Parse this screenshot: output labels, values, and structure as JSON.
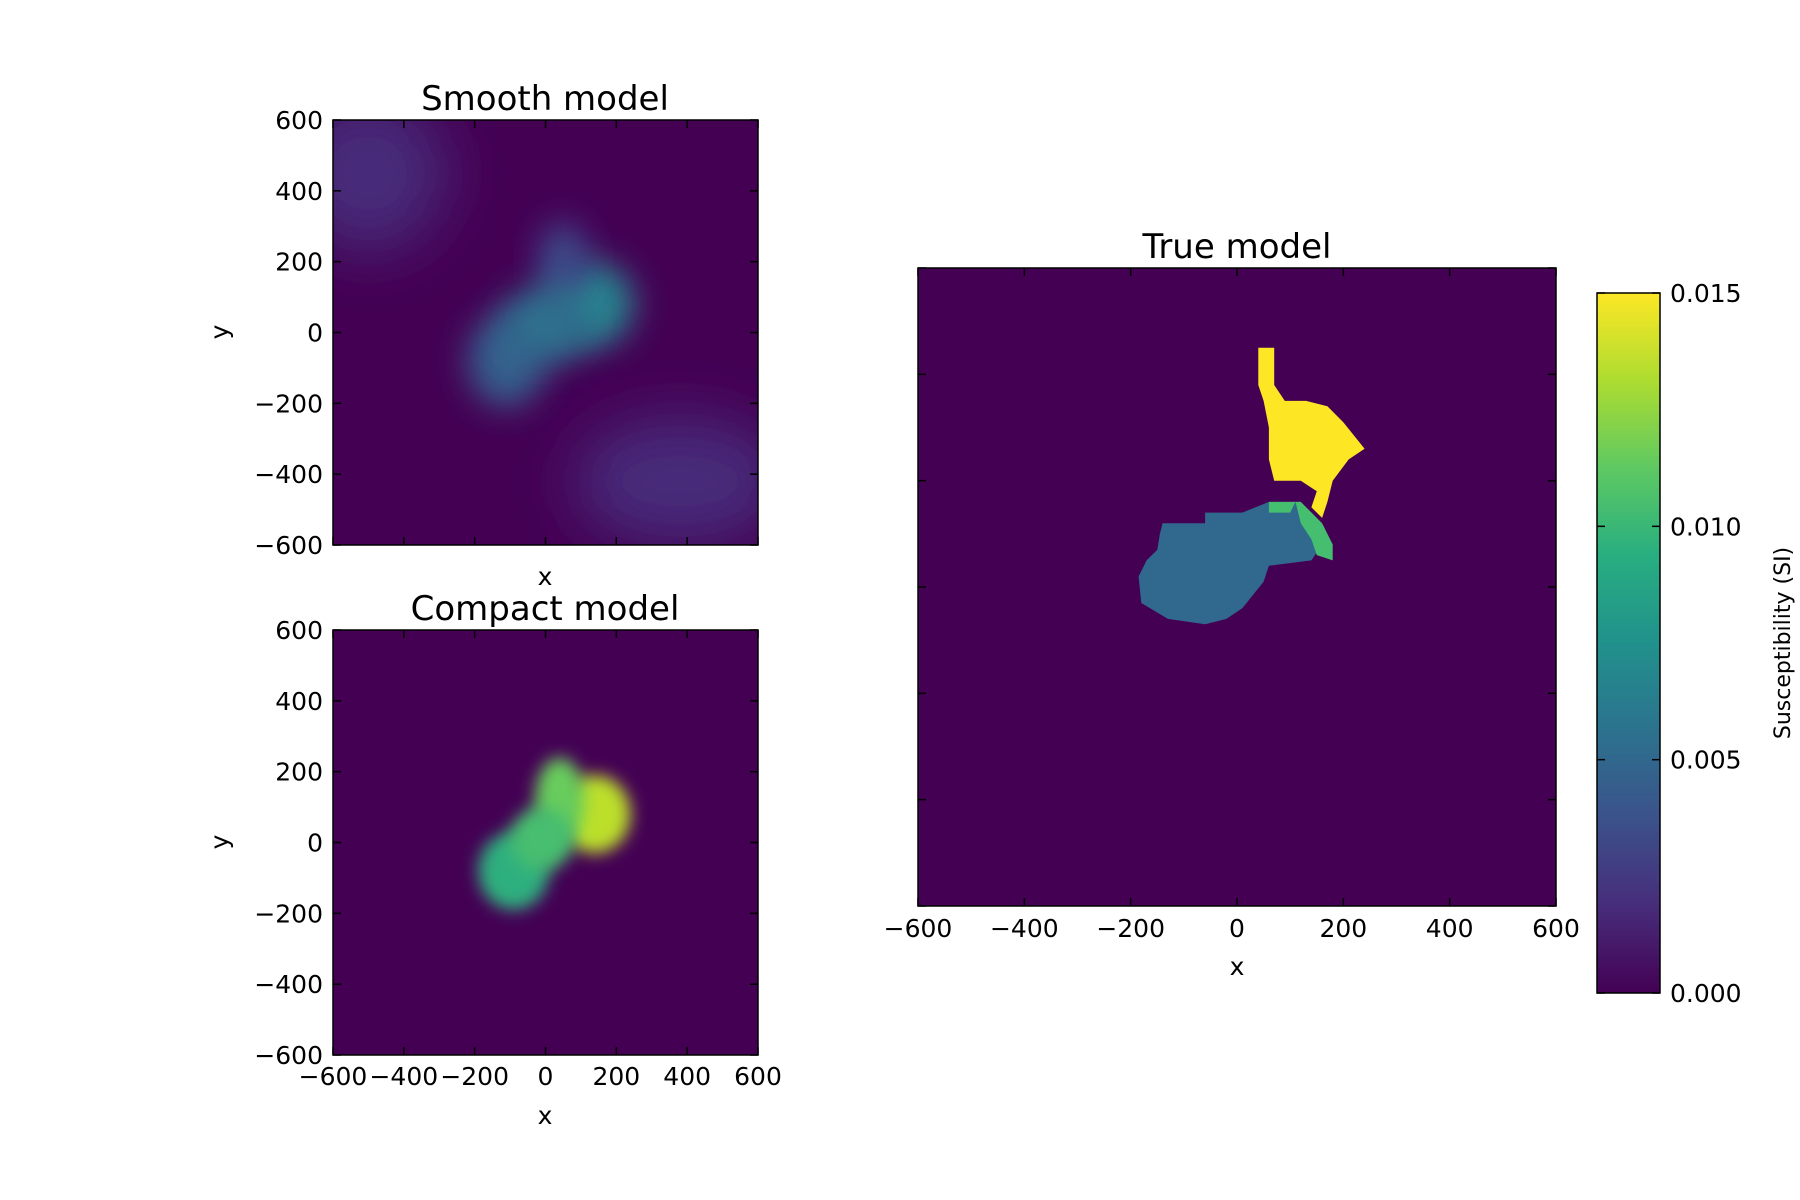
{
  "chart_data": [
    {
      "type": "heatmap",
      "title": "Smooth model",
      "xlabel": "x",
      "ylabel": "y",
      "xlim": [
        -600,
        600
      ],
      "ylim": [
        -600,
        600
      ],
      "x_ticks_shown": false,
      "y_ticks": [
        "600",
        "400",
        "200",
        "0",
        "−200",
        "−400",
        "−600"
      ],
      "colormap": "viridis",
      "features": [
        {
          "shape": "blob",
          "center": [
            130,
            80
          ],
          "radius_x": 120,
          "radius_y": 120,
          "value": 0.0068
        },
        {
          "shape": "blob",
          "center": [
            50,
            200
          ],
          "radius_x": 70,
          "radius_y": 110,
          "value": 0.0035
        },
        {
          "shape": "blob",
          "center": [
            -110,
            -80
          ],
          "radius_x": 110,
          "radius_y": 130,
          "value": 0.0045
        },
        {
          "shape": "blob",
          "center": [
            0,
            20
          ],
          "radius_x": 130,
          "radius_y": 110,
          "value": 0.0055
        },
        {
          "shape": "haze",
          "center": [
            -500,
            450
          ],
          "radius_x": 220,
          "radius_y": 220,
          "value": 0.0018
        },
        {
          "shape": "haze",
          "center": [
            380,
            -420
          ],
          "radius_x": 300,
          "radius_y": 180,
          "value": 0.0018
        }
      ]
    },
    {
      "type": "heatmap",
      "title": "Compact model",
      "xlabel": "x",
      "ylabel": "y",
      "xlim": [
        -600,
        600
      ],
      "ylim": [
        -600,
        600
      ],
      "x_ticks": [
        "−600",
        "−400",
        "−200",
        "0",
        "200",
        "400",
        "600"
      ],
      "y_ticks": [
        "600",
        "400",
        "200",
        "0",
        "−200",
        "−400",
        "−600"
      ],
      "colormap": "viridis",
      "features": [
        {
          "shape": "blob",
          "center": [
            140,
            80
          ],
          "radius_x": 100,
          "radius_y": 110,
          "value": 0.0135
        },
        {
          "shape": "blob",
          "center": [
            40,
            120
          ],
          "radius_x": 70,
          "radius_y": 120,
          "value": 0.0115
        },
        {
          "shape": "blob",
          "center": [
            -90,
            -80
          ],
          "radius_x": 100,
          "radius_y": 110,
          "value": 0.0095
        },
        {
          "shape": "blob",
          "center": [
            -10,
            10
          ],
          "radius_x": 90,
          "radius_y": 90,
          "value": 0.0105
        }
      ]
    },
    {
      "type": "heatmap",
      "title": "True model",
      "xlabel": "x",
      "ylabel": "",
      "xlim": [
        -600,
        600
      ],
      "ylim": [
        -600,
        600
      ],
      "x_ticks": [
        "−600",
        "−400",
        "−200",
        "0",
        "200",
        "400",
        "600"
      ],
      "y_ticks_shown": false,
      "colormap": "viridis",
      "regions": [
        {
          "name": "",
          "value": 0.005,
          "polygon": [
            [
              -140,
              120
            ],
            [
              -60,
              120
            ],
            [
              -60,
              140
            ],
            [
              10,
              140
            ],
            [
              60,
              160
            ],
            [
              120,
              160
            ],
            [
              140,
              130
            ],
            [
              160,
              80
            ],
            [
              140,
              50
            ],
            [
              60,
              40
            ],
            [
              50,
              10
            ],
            [
              10,
              -40
            ],
            [
              -20,
              -60
            ],
            [
              -60,
              -70
            ],
            [
              -130,
              -60
            ],
            [
              -180,
              -30
            ],
            [
              -185,
              20
            ],
            [
              -170,
              50
            ],
            [
              -150,
              70
            ],
            [
              -145,
              100
            ]
          ]
        },
        {
          "name": "",
          "value": 0.0105,
          "polygon": [
            [
              60,
              140
            ],
            [
              100,
              140
            ],
            [
              110,
              160
            ],
            [
              120,
              120
            ],
            [
              140,
              90
            ],
            [
              150,
              60
            ],
            [
              180,
              50
            ],
            [
              180,
              80
            ],
            [
              160,
              120
            ],
            [
              120,
              160
            ],
            [
              60,
              160
            ]
          ]
        },
        {
          "name": "",
          "value": 0.015,
          "polygon": [
            [
              40,
              450
            ],
            [
              70,
              450
            ],
            [
              70,
              380
            ],
            [
              90,
              350
            ],
            [
              130,
              350
            ],
            [
              170,
              340
            ],
            [
              200,
              310
            ],
            [
              240,
              260
            ],
            [
              210,
              240
            ],
            [
              180,
              200
            ],
            [
              170,
              160
            ],
            [
              160,
              130
            ],
            [
              140,
              150
            ],
            [
              150,
              180
            ],
            [
              120,
              200
            ],
            [
              70,
              200
            ],
            [
              60,
              240
            ],
            [
              60,
              300
            ],
            [
              50,
              350
            ],
            [
              40,
              380
            ]
          ]
        }
      ]
    },
    {
      "type": "colorbar",
      "label": "Susceptibility (SI)",
      "range": [
        0.0,
        0.015
      ],
      "ticks": [
        0.0,
        0.005,
        0.01,
        0.015
      ],
      "tick_labels": [
        "0.000",
        "0.005",
        "0.010",
        "0.015"
      ],
      "colormap": "viridis"
    }
  ]
}
